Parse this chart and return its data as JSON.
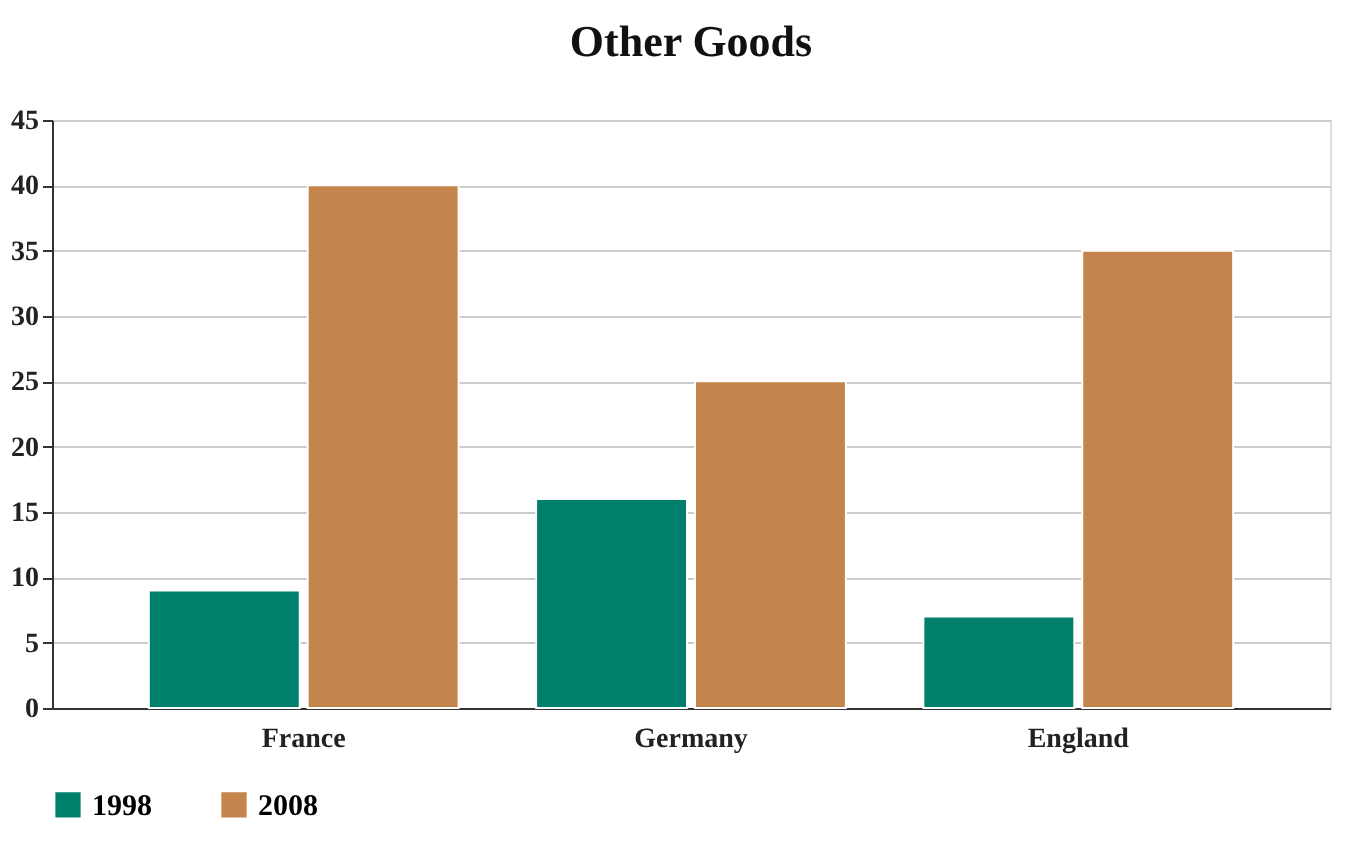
{
  "chart_data": {
    "type": "bar",
    "title": "Other Goods",
    "categories": [
      "France",
      "Germany",
      "England"
    ],
    "series": [
      {
        "name": "1998",
        "color": "#00806c",
        "values": [
          9,
          16,
          7
        ]
      },
      {
        "name": "2008",
        "color": "#c4854c",
        "values": [
          40,
          25,
          35
        ]
      }
    ],
    "ylim": [
      0,
      45
    ],
    "yticks": [
      0,
      5,
      10,
      15,
      20,
      25,
      30,
      35,
      40,
      45
    ],
    "grid": "y",
    "legend": "bottom"
  }
}
